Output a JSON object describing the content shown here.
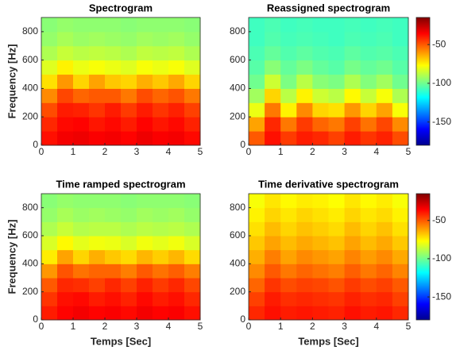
{
  "chart_data": [
    {
      "type": "heatmap",
      "title": "Spectrogram",
      "ylabel": "Frequency [Hz]",
      "colormap": "jet",
      "xlim": [
        0,
        5
      ],
      "xticks": [
        0,
        1,
        2,
        3,
        4,
        5
      ],
      "ylim": [
        0,
        900
      ],
      "yticks": [
        0,
        200,
        400,
        600,
        800
      ],
      "clim": [
        -180,
        -15
      ],
      "z": [
        [
          -38,
          -34,
          -33,
          -35,
          -34,
          -36,
          -33,
          -35,
          -34,
          -37
        ],
        [
          -42,
          -37,
          -36,
          -39,
          -37,
          -40,
          -36,
          -39,
          -37,
          -41
        ],
        [
          -48,
          -40,
          -41,
          -44,
          -40,
          -45,
          -40,
          -44,
          -41,
          -46
        ],
        [
          -58,
          -47,
          -52,
          -50,
          -50,
          -55,
          -48,
          -52,
          -49,
          -55
        ],
        [
          -72,
          -60,
          -70,
          -62,
          -68,
          -70,
          -64,
          -68,
          -63,
          -70
        ],
        [
          -82,
          -75,
          -80,
          -78,
          -80,
          -82,
          -78,
          -80,
          -78,
          -82
        ],
        [
          -90,
          -86,
          -88,
          -87,
          -88,
          -90,
          -87,
          -88,
          -87,
          -90
        ],
        [
          -94,
          -91,
          -93,
          -92,
          -93,
          -94,
          -92,
          -93,
          -92,
          -94
        ],
        [
          -96,
          -94,
          -95,
          -95,
          -95,
          -96,
          -95,
          -95,
          -95,
          -96
        ]
      ]
    },
    {
      "type": "heatmap",
      "title": "Reassigned spectrogram",
      "colormap": "jet",
      "xlim": [
        0,
        5
      ],
      "xticks": [
        0,
        1,
        2,
        3,
        4,
        5
      ],
      "ylim": [
        0,
        900
      ],
      "yticks": [
        0,
        200,
        400,
        600,
        800
      ],
      "clim": [
        -180,
        -15
      ],
      "colorbar_ticks": [
        -50,
        -100,
        -150
      ],
      "z": [
        [
          -50,
          -38,
          -45,
          -40,
          -42,
          -46,
          -40,
          -44,
          -41,
          -48
        ],
        [
          -62,
          -42,
          -55,
          -45,
          -52,
          -55,
          -46,
          -54,
          -47,
          -58
        ],
        [
          -80,
          -55,
          -75,
          -58,
          -70,
          -72,
          -60,
          -70,
          -62,
          -78
        ],
        [
          -92,
          -70,
          -88,
          -75,
          -85,
          -88,
          -76,
          -86,
          -78,
          -90
        ],
        [
          -100,
          -85,
          -98,
          -88,
          -96,
          -98,
          -90,
          -97,
          -92,
          -100
        ],
        [
          -104,
          -96,
          -102,
          -98,
          -102,
          -104,
          -99,
          -102,
          -100,
          -104
        ],
        [
          -106,
          -102,
          -105,
          -103,
          -105,
          -106,
          -103,
          -105,
          -104,
          -106
        ],
        [
          -108,
          -105,
          -107,
          -106,
          -107,
          -108,
          -106,
          -107,
          -106,
          -108
        ],
        [
          -108,
          -106,
          -108,
          -107,
          -108,
          -108,
          -107,
          -108,
          -107,
          -108
        ]
      ]
    },
    {
      "type": "heatmap",
      "title": "Time ramped spectrogram",
      "ylabel": "Frequency [Hz]",
      "xlabel": "Temps [Sec]",
      "colormap": "jet",
      "xlim": [
        0,
        5
      ],
      "xticks": [
        0,
        1,
        2,
        3,
        4,
        5
      ],
      "ylim": [
        0,
        900
      ],
      "yticks": [
        0,
        200,
        400,
        600,
        800
      ],
      "clim": [
        -180,
        -15
      ],
      "z": [
        [
          -40,
          -36,
          -34,
          -36,
          -35,
          -37,
          -34,
          -36,
          -35,
          -38
        ],
        [
          -44,
          -38,
          -37,
          -40,
          -38,
          -41,
          -37,
          -40,
          -38,
          -42
        ],
        [
          -50,
          -42,
          -43,
          -46,
          -42,
          -46,
          -41,
          -45,
          -42,
          -47
        ],
        [
          -60,
          -49,
          -54,
          -52,
          -52,
          -56,
          -50,
          -54,
          -51,
          -56
        ],
        [
          -74,
          -62,
          -70,
          -64,
          -68,
          -71,
          -65,
          -69,
          -65,
          -71
        ],
        [
          -83,
          -76,
          -81,
          -79,
          -80,
          -83,
          -79,
          -81,
          -79,
          -83
        ],
        [
          -90,
          -86,
          -89,
          -88,
          -88,
          -90,
          -88,
          -89,
          -88,
          -90
        ],
        [
          -94,
          -91,
          -93,
          -92,
          -93,
          -94,
          -92,
          -93,
          -92,
          -94
        ],
        [
          -96,
          -94,
          -95,
          -95,
          -95,
          -96,
          -95,
          -95,
          -95,
          -96
        ]
      ]
    },
    {
      "type": "heatmap",
      "title": "Time derivative spectrogram",
      "xlabel": "Temps [Sec]",
      "colormap": "jet",
      "xlim": [
        0,
        5
      ],
      "xticks": [
        0,
        1,
        2,
        3,
        4,
        5
      ],
      "ylim": [
        0,
        900
      ],
      "yticks": [
        0,
        200,
        400,
        600,
        800
      ],
      "clim": [
        -180,
        -15
      ],
      "colorbar_ticks": [
        -50,
        -100,
        -150
      ],
      "z": [
        [
          -42,
          -38,
          -40,
          -39,
          -40,
          -41,
          -38,
          -40,
          -39,
          -42
        ],
        [
          -46,
          -40,
          -43,
          -42,
          -43,
          -44,
          -41,
          -43,
          -42,
          -46
        ],
        [
          -52,
          -44,
          -48,
          -46,
          -47,
          -49,
          -45,
          -48,
          -46,
          -50
        ],
        [
          -58,
          -50,
          -55,
          -52,
          -54,
          -56,
          -51,
          -55,
          -52,
          -57
        ],
        [
          -64,
          -56,
          -62,
          -58,
          -60,
          -62,
          -57,
          -61,
          -58,
          -63
        ],
        [
          -68,
          -62,
          -66,
          -63,
          -65,
          -67,
          -62,
          -66,
          -63,
          -68
        ],
        [
          -72,
          -66,
          -70,
          -67,
          -69,
          -71,
          -66,
          -70,
          -67,
          -72
        ],
        [
          -75,
          -70,
          -73,
          -70,
          -72,
          -74,
          -70,
          -73,
          -71,
          -75
        ],
        [
          -78,
          -73,
          -76,
          -74,
          -75,
          -77,
          -73,
          -76,
          -74,
          -78
        ]
      ]
    }
  ]
}
